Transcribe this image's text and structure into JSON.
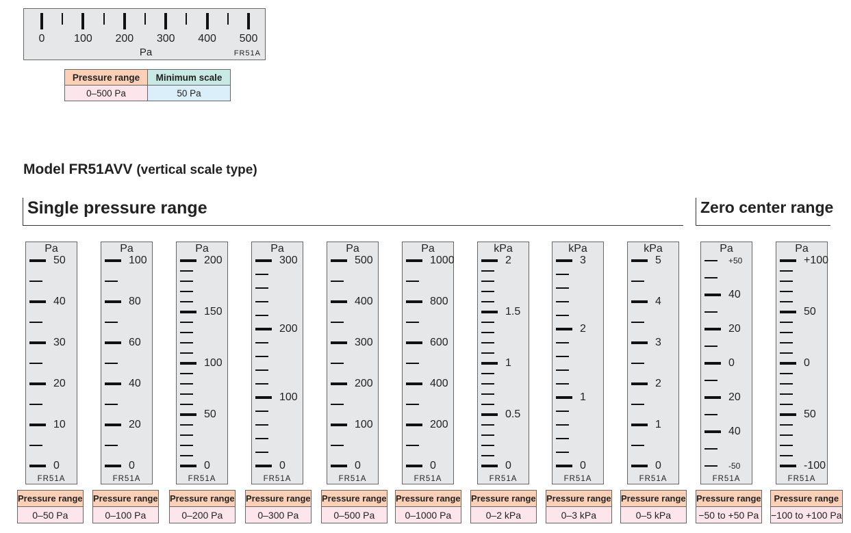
{
  "horizontal": {
    "labels": [
      "0",
      "100",
      "200",
      "300",
      "400",
      "500"
    ],
    "unit": "Pa",
    "model": "FR51A",
    "table": {
      "header_range": "Pressure range",
      "header_min": "Minimum scale",
      "range": "0–500 Pa",
      "min": "50 Pa"
    }
  },
  "title": {
    "main": "Model FR51AVV",
    "sub": "(vertical scale type)"
  },
  "sections": {
    "single": "Single pressure range",
    "zero": "Zero center range"
  },
  "colors": {
    "scale_bg": "#e6e7e8",
    "header_orange": "#fbd0b7",
    "header_cyan": "#c9e9e4",
    "value_pink": "#fde5ec",
    "value_blue": "#dbeffb"
  },
  "scales": [
    {
      "unit": "Pa",
      "model": "FR51A",
      "range_header": "Pressure range",
      "range": "0–50  Pa",
      "minor": 1,
      "labels": [
        "50",
        "40",
        "30",
        "20",
        "10",
        "0"
      ]
    },
    {
      "unit": "Pa",
      "model": "FR51A",
      "range_header": "Pressure range",
      "range": "0–100  Pa",
      "minor": 1,
      "labels": [
        "100",
        "80",
        "60",
        "40",
        "20",
        "0"
      ]
    },
    {
      "unit": "Pa",
      "model": "FR51A",
      "range_header": "Pressure range",
      "range": "0–200 Pa",
      "minor": 4,
      "labels": [
        "200",
        "150",
        "100",
        "50",
        "0"
      ]
    },
    {
      "unit": "Pa",
      "model": "FR51A",
      "range_header": "Pressure range",
      "range": "0–300 Pa",
      "minor": 4,
      "labels": [
        "300",
        "200",
        "100",
        "0"
      ]
    },
    {
      "unit": "Pa",
      "model": "FR51A",
      "range_header": "Pressure range",
      "range": "0–500 Pa",
      "minor": 1,
      "labels": [
        "500",
        "400",
        "300",
        "200",
        "100",
        "0"
      ]
    },
    {
      "unit": "Pa",
      "model": "FR51A",
      "range_header": "Pressure range",
      "range": "0–1000 Pa",
      "minor": 1,
      "labels": [
        "1000",
        "800",
        "600",
        "400",
        "200",
        "0"
      ]
    },
    {
      "unit": "kPa",
      "model": "FR51A",
      "range_header": "Pressure range",
      "range": "0–2 kPa",
      "minor": 4,
      "labels": [
        "2",
        "1.5",
        "1",
        "0.5",
        "0"
      ]
    },
    {
      "unit": "kPa",
      "model": "FR51A",
      "range_header": "Pressure range",
      "range": "0–3 kPa",
      "minor": 4,
      "labels": [
        "3",
        "2",
        "1",
        "0"
      ]
    },
    {
      "unit": "kPa",
      "model": "FR51A",
      "range_header": "Pressure range",
      "range": "0–5 kPa",
      "minor": 1,
      "labels": [
        "5",
        "4",
        "3",
        "2",
        "1",
        "0"
      ]
    },
    {
      "unit": "Pa",
      "model": "FR51A",
      "range_header": "Pressure range",
      "range": "−50 to +50 Pa",
      "minor": 1,
      "labels": [
        "+50",
        "40",
        "20",
        "0",
        "20",
        "40",
        "-50"
      ],
      "small_ends": true
    },
    {
      "unit": "Pa",
      "model": "FR51A",
      "range_header": "Pressure range",
      "range": "−100 to +100 Pa",
      "minor": 4,
      "labels": [
        "+100",
        "50",
        "0",
        "50",
        "-100"
      ]
    }
  ]
}
